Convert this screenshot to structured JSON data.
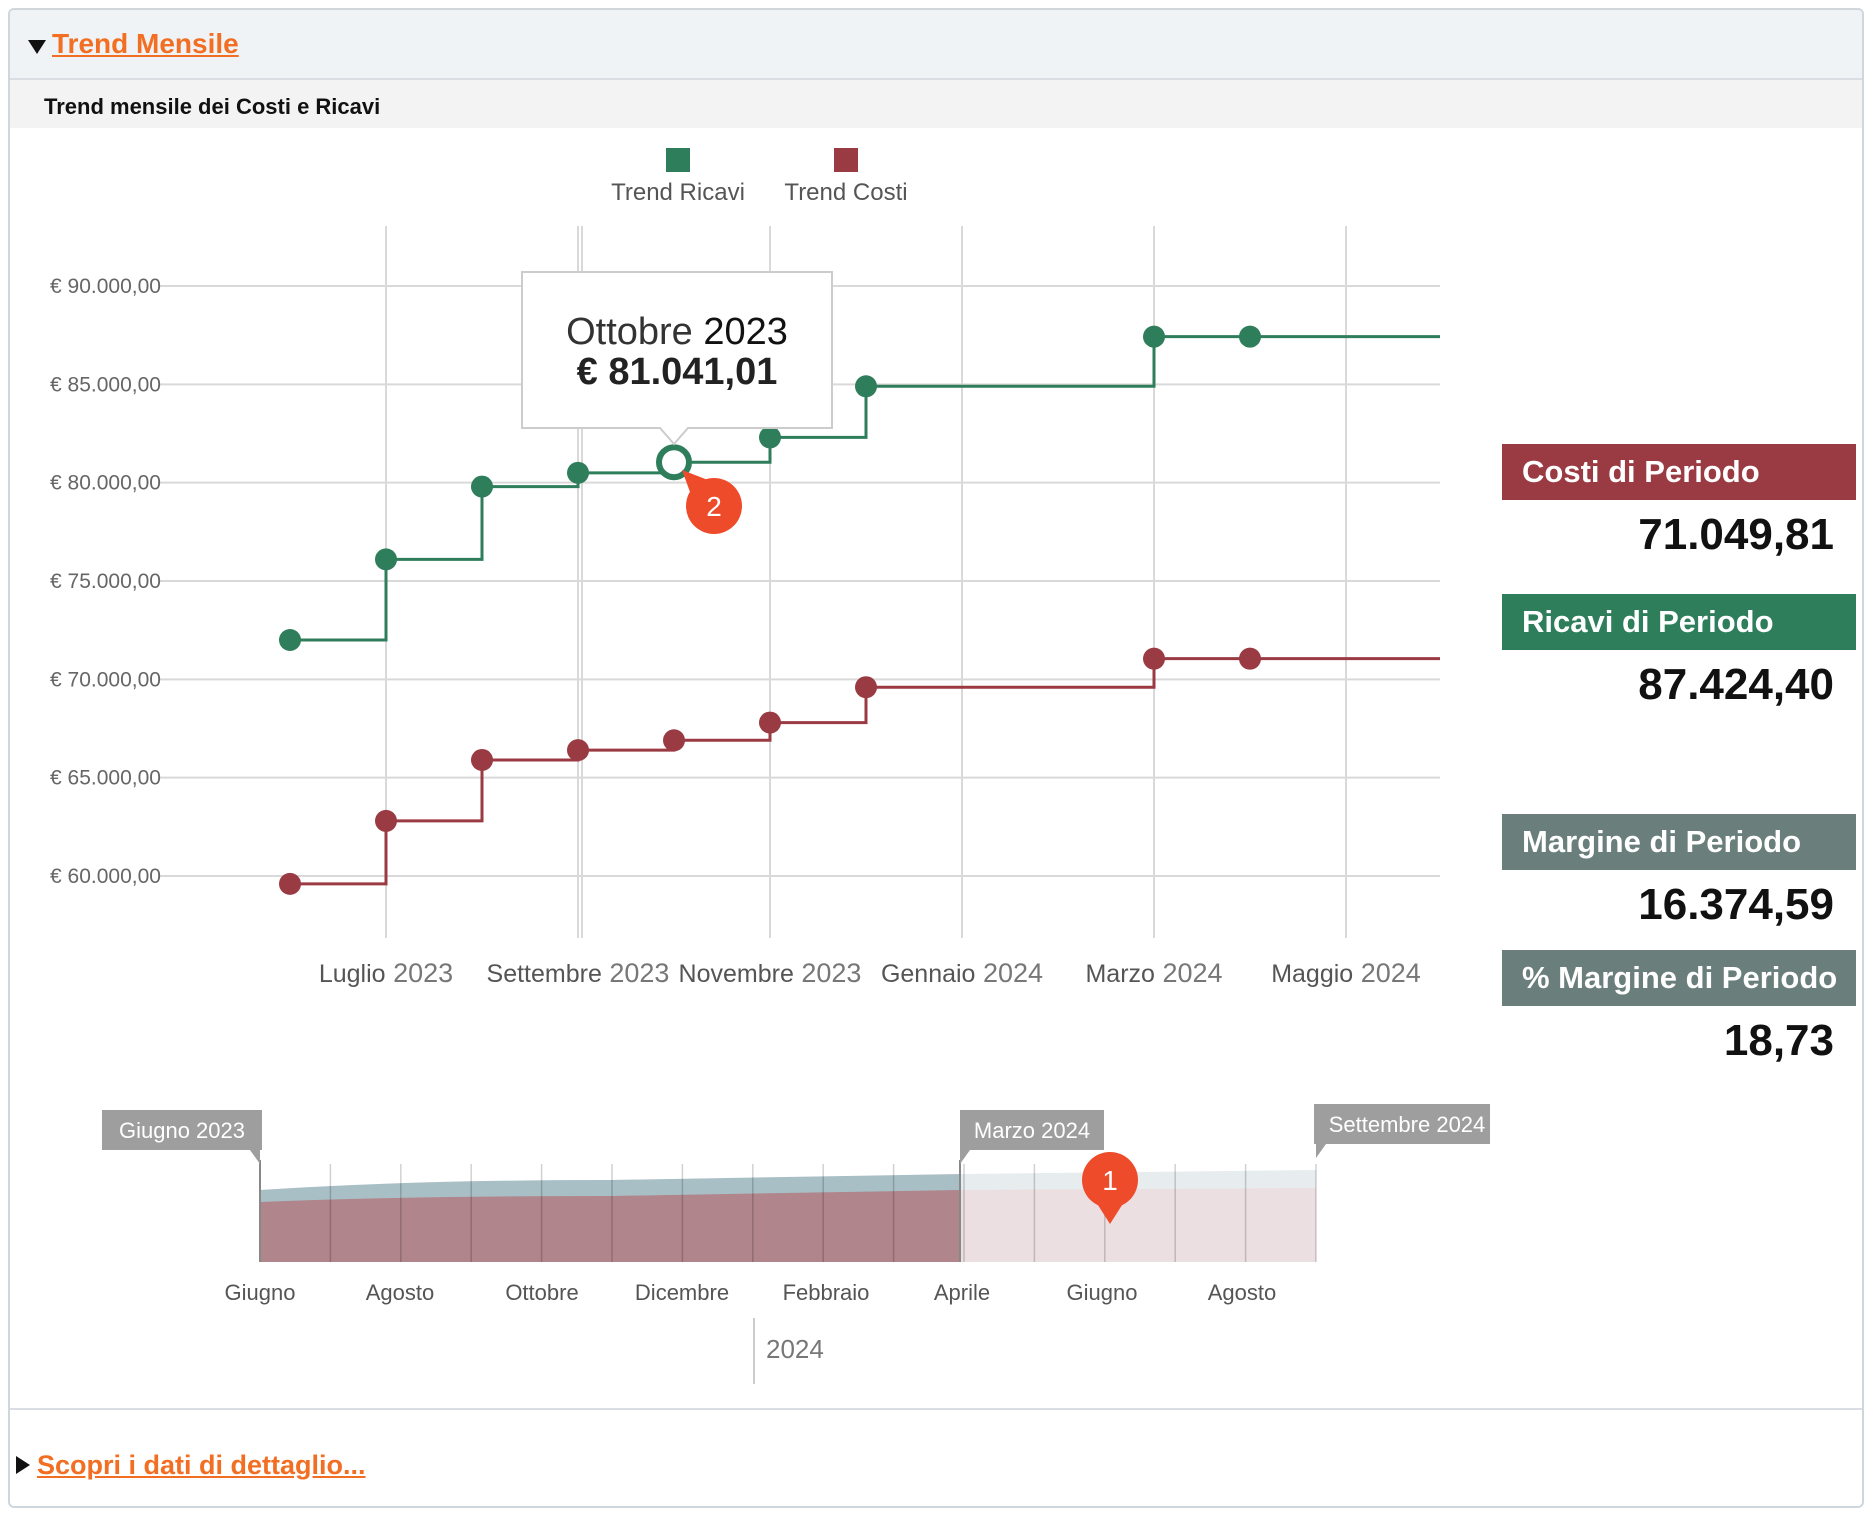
{
  "header": {
    "title": "Trend Mensile"
  },
  "subheader": {
    "title": "Trend mensile dei Costi e Ricavi"
  },
  "colors": {
    "ricavi": "#2e7d5b",
    "costi": "#9a3a42",
    "margine": "#6a7f7b",
    "accent": "#f26e22",
    "badge": "#ee4b2b"
  },
  "chart_data": {
    "type": "line",
    "step": true,
    "legend": [
      "Trend Ricavi",
      "Trend Costi"
    ],
    "y_ticks": [
      "€ 60.000,00",
      "€ 65.000,00",
      "€ 70.000,00",
      "€ 75.000,00",
      "€ 80.000,00",
      "€ 85.000,00",
      "€ 90.000,00"
    ],
    "ylim": [
      59000,
      93000
    ],
    "x_ticks": [
      {
        "month": "Luglio",
        "year": "2023"
      },
      {
        "month": "Settembre",
        "year": "2023"
      },
      {
        "month": "Novembre",
        "year": "2023"
      },
      {
        "month": "Gennaio",
        "year": "2024"
      },
      {
        "month": "Marzo",
        "year": "2024"
      },
      {
        "month": "Maggio",
        "year": "2024"
      }
    ],
    "x": [
      "2023-06",
      "2023-07",
      "2023-08",
      "2023-09",
      "2023-10",
      "2023-11",
      "2023-12",
      "2024-03",
      "2024-04"
    ],
    "series": [
      {
        "name": "Trend Ricavi",
        "values": [
          72000,
          76100,
          79800,
          80500,
          81041.01,
          82300,
          84900,
          87424.4,
          87424.4
        ]
      },
      {
        "name": "Trend Costi",
        "values": [
          59600,
          62800,
          65900,
          66400,
          66900,
          67800,
          69600,
          71049.81,
          71049.81
        ]
      }
    ],
    "tooltip": {
      "month": "Ottobre",
      "year": "2023",
      "value": "€ 81.041,01"
    },
    "badge": "2",
    "navigator": {
      "flags": [
        {
          "month": "Giugno",
          "year": "2023"
        },
        {
          "month": "Marzo",
          "year": "2024"
        },
        {
          "month": "Settembre",
          "year": "2024"
        }
      ],
      "labels": [
        "Giugno",
        "Agosto",
        "Ottobre",
        "Dicembre",
        "Febbraio",
        "Aprile",
        "Giugno",
        "Agosto"
      ],
      "year_label": "2024",
      "badge": "1"
    }
  },
  "kpis": [
    {
      "label": "Costi di Periodo",
      "value": "71.049,81"
    },
    {
      "label": "Ricavi di Periodo",
      "value": "87.424,40"
    },
    {
      "label": "Margine di Periodo",
      "value": "16.374,59"
    },
    {
      "label": "% Margine di Periodo",
      "value": "18,73"
    }
  ],
  "footer": {
    "link": "Scopri i dati di dettaglio..."
  }
}
